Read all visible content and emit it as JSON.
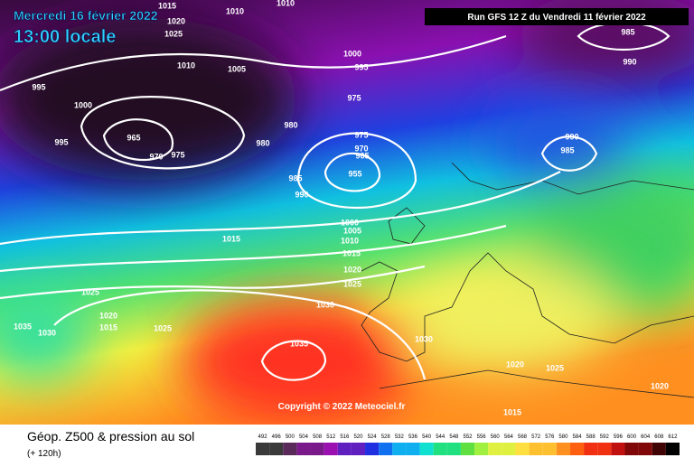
{
  "header": {
    "date": "Mercredi 16 février 2022",
    "time": "13:00 locale",
    "run": "Run GFS 12 Z du Vendredi 11 février 2022"
  },
  "map": {
    "copyright": "Copyright © 2022 Meteociel.fr",
    "isobar_labels": [
      1015,
      1010,
      1010,
      1020,
      1025,
      1010,
      1005,
      1000,
      995,
      985,
      990,
      995,
      1000,
      995,
      965,
      970,
      975,
      980,
      980,
      975,
      975,
      970,
      965,
      955,
      985,
      990,
      990,
      985,
      1000,
      1005,
      1010,
      1015,
      1015,
      1020,
      1025,
      1025,
      1030,
      1020,
      1015,
      1035,
      1030,
      1025,
      1035,
      1030,
      1020,
      1025,
      1020,
      1015
    ]
  },
  "footer": {
    "title": "Géop. Z500 & pression au sol",
    "lead": "(+ 120h)",
    "scale": [
      492,
      496,
      500,
      504,
      508,
      512,
      516,
      520,
      524,
      528,
      532,
      536,
      540,
      544,
      548,
      552,
      556,
      560,
      564,
      568,
      572,
      576,
      580,
      584,
      588,
      592,
      596,
      600,
      604,
      608,
      612
    ]
  }
}
